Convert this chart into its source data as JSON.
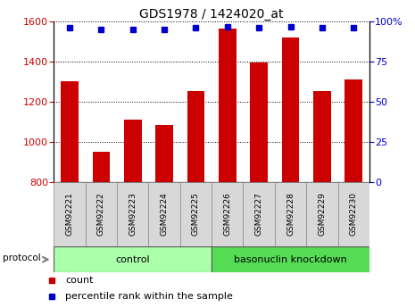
{
  "title": "GDS1978 / 1424020_at",
  "categories": [
    "GSM92221",
    "GSM92222",
    "GSM92223",
    "GSM92224",
    "GSM92225",
    "GSM92226",
    "GSM92227",
    "GSM92228",
    "GSM92229",
    "GSM92230"
  ],
  "bar_values": [
    1300,
    950,
    1110,
    1085,
    1255,
    1565,
    1395,
    1520,
    1255,
    1310
  ],
  "bar_color": "#cc0000",
  "percentile_values": [
    96,
    95,
    95,
    95,
    96,
    97,
    96,
    97,
    96,
    96
  ],
  "percentile_color": "#0000cc",
  "ylim_left": [
    800,
    1600
  ],
  "ylim_right": [
    0,
    100
  ],
  "yticks_left": [
    800,
    1000,
    1200,
    1400,
    1600
  ],
  "yticks_right": [
    0,
    25,
    50,
    75,
    100
  ],
  "background_color": "#ffffff",
  "control_label": "control",
  "knockdown_label": "basonuclin knockdown",
  "protocol_label": "protocol",
  "legend_count": "count",
  "legend_percentile": "percentile rank within the sample",
  "control_color": "#aaffaa",
  "knockdown_color": "#55dd55",
  "tick_area_color": "#d8d8d8",
  "n_control": 5,
  "n_knockdown": 5
}
